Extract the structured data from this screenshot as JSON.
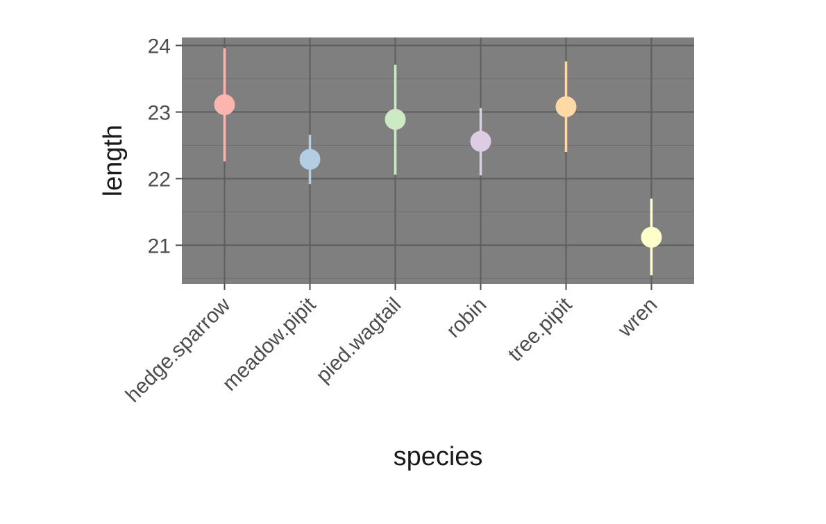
{
  "chart_data": {
    "type": "pointrange",
    "title": "",
    "xlabel": "species",
    "ylabel": "length",
    "categories": [
      "hedge.sparrow",
      "meadow.pipit",
      "pied.wagtail",
      "robin",
      "tree.pipit",
      "wren"
    ],
    "series": [
      {
        "values": [
          23.11,
          22.29,
          22.89,
          22.56,
          23.08,
          21.12
        ],
        "lower": [
          22.26,
          21.92,
          22.06,
          22.05,
          22.4,
          20.55
        ],
        "upper": [
          23.96,
          22.66,
          23.71,
          23.06,
          23.76,
          21.7
        ],
        "colors": [
          "#FBB4AE",
          "#B3CDE3",
          "#CCEBC5",
          "#DECBE4",
          "#FED9A6",
          "#FFFFCC"
        ]
      }
    ],
    "y_ticks": [
      "21",
      "22",
      "23",
      "24"
    ],
    "ylim": [
      20.42,
      24.12
    ],
    "grid": true,
    "legend": "none",
    "panel_background": "#7f7f7f"
  }
}
